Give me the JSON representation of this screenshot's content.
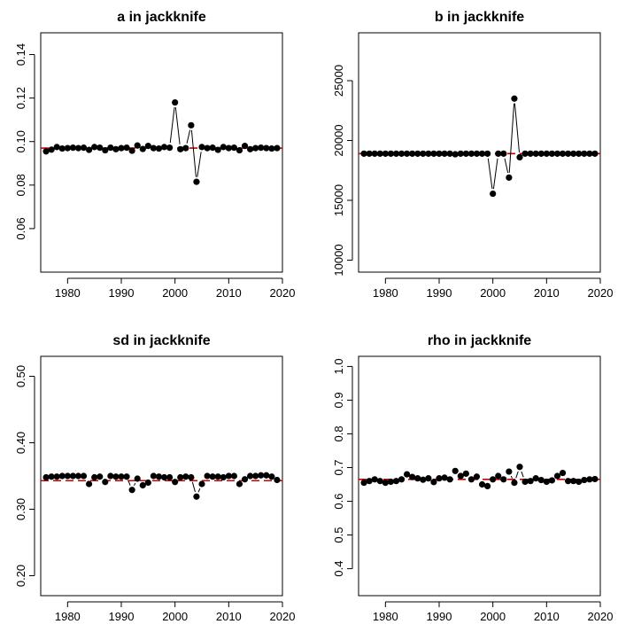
{
  "chart_data": [
    {
      "type": "line",
      "title": "a in jackknife",
      "xlabel": "",
      "ylabel": "",
      "xlim": [
        1975,
        2020
      ],
      "ylim": [
        0.04,
        0.15
      ],
      "x_ticks": [
        1980,
        1990,
        2000,
        2010,
        2020
      ],
      "y_ticks": [
        0.06,
        0.08,
        0.1,
        0.12,
        0.14
      ],
      "y_tick_labels": [
        "0.06",
        "0.08",
        "0.10",
        "0.12",
        "0.14"
      ],
      "reference_line": 0.097,
      "reference_color": "#cc0000",
      "x": [
        1976,
        1977,
        1978,
        1979,
        1980,
        1981,
        1982,
        1983,
        1984,
        1985,
        1986,
        1987,
        1988,
        1989,
        1990,
        1991,
        1992,
        1993,
        1994,
        1995,
        1996,
        1997,
        1998,
        1999,
        2000,
        2001,
        2002,
        2003,
        2004,
        2005,
        2006,
        2007,
        2008,
        2009,
        2010,
        2011,
        2012,
        2013,
        2014,
        2015,
        2016,
        2017,
        2018,
        2019
      ],
      "series": [
        {
          "values": [
            0.0955,
            0.0963,
            0.0975,
            0.0968,
            0.097,
            0.0972,
            0.097,
            0.0972,
            0.0962,
            0.0975,
            0.0972,
            0.096,
            0.0972,
            0.0965,
            0.097,
            0.0972,
            0.0958,
            0.0982,
            0.0966,
            0.098,
            0.097,
            0.0968,
            0.0975,
            0.0972,
            0.118,
            0.0965,
            0.097,
            0.1075,
            0.0815,
            0.0975,
            0.097,
            0.0972,
            0.0962,
            0.0975,
            0.097,
            0.0972,
            0.096,
            0.098,
            0.0965,
            0.097,
            0.0972,
            0.097,
            0.0968,
            0.097
          ]
        }
      ]
    },
    {
      "type": "line",
      "title": "b in jackknife",
      "xlabel": "",
      "ylabel": "",
      "xlim": [
        1975,
        2020
      ],
      "ylim": [
        9000,
        29000
      ],
      "x_ticks": [
        1980,
        1990,
        2000,
        2010,
        2020
      ],
      "y_ticks": [
        10000,
        15000,
        20000,
        25000
      ],
      "y_tick_labels": [
        "10000",
        "15000",
        "20000",
        "25000"
      ],
      "reference_line": 18900,
      "reference_color": "#cc0000",
      "x": [
        1976,
        1977,
        1978,
        1979,
        1980,
        1981,
        1982,
        1983,
        1984,
        1985,
        1986,
        1987,
        1988,
        1989,
        1990,
        1991,
        1992,
        1993,
        1994,
        1995,
        1996,
        1997,
        1998,
        1999,
        2000,
        2001,
        2002,
        2003,
        2004,
        2005,
        2006,
        2007,
        2008,
        2009,
        2010,
        2011,
        2012,
        2013,
        2014,
        2015,
        2016,
        2017,
        2018,
        2019
      ],
      "series": [
        {
          "values": [
            18900,
            18900,
            18900,
            18900,
            18900,
            18900,
            18900,
            18900,
            18900,
            18900,
            18900,
            18900,
            18900,
            18900,
            18900,
            18900,
            18900,
            18850,
            18900,
            18900,
            18900,
            18900,
            18900,
            18900,
            15550,
            18900,
            18900,
            16900,
            23500,
            18600,
            18900,
            18900,
            18900,
            18900,
            18900,
            18900,
            18900,
            18900,
            18900,
            18900,
            18900,
            18900,
            18900,
            18900
          ]
        }
      ]
    },
    {
      "type": "line",
      "title": "sd in jackknife",
      "xlabel": "",
      "ylabel": "",
      "xlim": [
        1975,
        2020
      ],
      "ylim": [
        0.17,
        0.53
      ],
      "x_ticks": [
        1980,
        1990,
        2000,
        2010,
        2020
      ],
      "y_ticks": [
        0.2,
        0.3,
        0.4,
        0.5
      ],
      "y_tick_labels": [
        "0.20",
        "0.30",
        "0.40",
        "0.50"
      ],
      "reference_line": 0.343,
      "reference_color": "#cc0000",
      "x": [
        1976,
        1977,
        1978,
        1979,
        1980,
        1981,
        1982,
        1983,
        1984,
        1985,
        1986,
        1987,
        1988,
        1989,
        1990,
        1991,
        1992,
        1993,
        1994,
        1995,
        1996,
        1997,
        1998,
        1999,
        2000,
        2001,
        2002,
        2003,
        2004,
        2005,
        2006,
        2007,
        2008,
        2009,
        2010,
        2011,
        2012,
        2013,
        2014,
        2015,
        2016,
        2017,
        2018,
        2019
      ],
      "series": [
        {
          "values": [
            0.348,
            0.349,
            0.349,
            0.35,
            0.35,
            0.35,
            0.35,
            0.35,
            0.338,
            0.348,
            0.349,
            0.341,
            0.35,
            0.349,
            0.349,
            0.349,
            0.329,
            0.346,
            0.336,
            0.34,
            0.35,
            0.349,
            0.348,
            0.348,
            0.341,
            0.348,
            0.349,
            0.348,
            0.319,
            0.338,
            0.35,
            0.349,
            0.349,
            0.348,
            0.35,
            0.35,
            0.338,
            0.345,
            0.35,
            0.35,
            0.351,
            0.351,
            0.349,
            0.344
          ]
        }
      ]
    },
    {
      "type": "line",
      "title": "rho in jackknife",
      "xlabel": "",
      "ylabel": "",
      "xlim": [
        1975,
        2020
      ],
      "ylim": [
        0.32,
        1.03
      ],
      "x_ticks": [
        1980,
        1990,
        2000,
        2010,
        2020
      ],
      "y_ticks": [
        0.4,
        0.5,
        0.6,
        0.7,
        0.8,
        0.9,
        1.0
      ],
      "y_tick_labels": [
        "0.4",
        "0.5",
        "0.6",
        "0.7",
        "0.8",
        "0.9",
        "1.0"
      ],
      "reference_line": 0.665,
      "reference_color": "#cc0000",
      "x": [
        1976,
        1977,
        1978,
        1979,
        1980,
        1981,
        1982,
        1983,
        1984,
        1985,
        1986,
        1987,
        1988,
        1989,
        1990,
        1991,
        1992,
        1993,
        1994,
        1995,
        1996,
        1997,
        1998,
        1999,
        2000,
        2001,
        2002,
        2003,
        2004,
        2005,
        2006,
        2007,
        2008,
        2009,
        2010,
        2011,
        2012,
        2013,
        2014,
        2015,
        2016,
        2017,
        2018,
        2019
      ],
      "series": [
        {
          "values": [
            0.655,
            0.66,
            0.665,
            0.66,
            0.655,
            0.658,
            0.66,
            0.665,
            0.68,
            0.672,
            0.668,
            0.664,
            0.668,
            0.657,
            0.668,
            0.67,
            0.665,
            0.69,
            0.675,
            0.682,
            0.665,
            0.673,
            0.65,
            0.645,
            0.665,
            0.675,
            0.665,
            0.688,
            0.655,
            0.702,
            0.658,
            0.66,
            0.668,
            0.663,
            0.658,
            0.662,
            0.675,
            0.684,
            0.66,
            0.66,
            0.658,
            0.663,
            0.665,
            0.666
          ]
        }
      ]
    }
  ]
}
